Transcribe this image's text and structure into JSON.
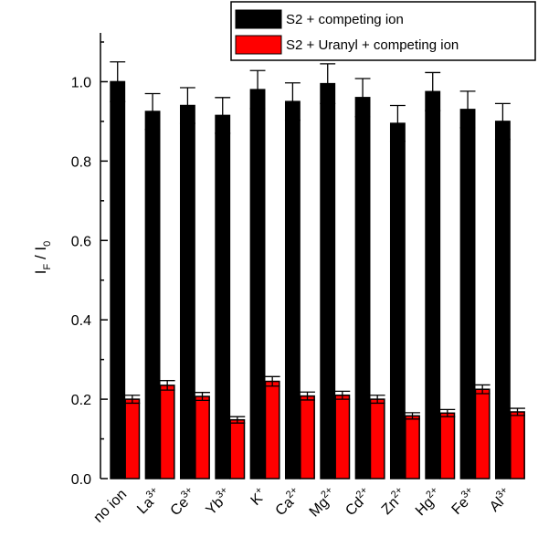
{
  "chart_data": {
    "type": "bar",
    "categories": [
      {
        "base": "no ion",
        "sup": ""
      },
      {
        "base": "La",
        "sup": "3+"
      },
      {
        "base": "Ce",
        "sup": "3+"
      },
      {
        "base": "Yb",
        "sup": "3+"
      },
      {
        "base": "K",
        "sup": "+"
      },
      {
        "base": "Ca",
        "sup": "2+"
      },
      {
        "base": "Mg",
        "sup": "2+"
      },
      {
        "base": "Cd",
        "sup": "2+"
      },
      {
        "base": "Zn",
        "sup": "2+"
      },
      {
        "base": "Hg",
        "sup": "2+"
      },
      {
        "base": "Fe",
        "sup": "3+"
      },
      {
        "base": "Al",
        "sup": "3+"
      }
    ],
    "series": [
      {
        "name": "S2 + competing ion",
        "color": "#000000",
        "values": [
          1.0,
          0.925,
          0.94,
          0.915,
          0.98,
          0.95,
          0.995,
          0.96,
          0.895,
          0.975,
          0.93,
          0.9
        ],
        "errors": [
          0.05,
          0.045,
          0.045,
          0.045,
          0.048,
          0.047,
          0.05,
          0.048,
          0.045,
          0.048,
          0.046,
          0.045
        ]
      },
      {
        "name": "S2 + Uranyl + competing ion",
        "color": "#ff0000",
        "values": [
          0.2,
          0.235,
          0.207,
          0.148,
          0.245,
          0.208,
          0.21,
          0.2,
          0.158,
          0.165,
          0.225,
          0.168
        ],
        "errors": [
          0.01,
          0.012,
          0.01,
          0.008,
          0.012,
          0.01,
          0.01,
          0.01,
          0.008,
          0.009,
          0.011,
          0.009
        ]
      }
    ],
    "ylabel": {
      "main": "I",
      "sub1": "F",
      "sep": " / I",
      "sub2": "0"
    },
    "xlabel": "",
    "ylim": [
      0,
      1.1
    ],
    "yticks": [
      0.0,
      0.2,
      0.4,
      0.6,
      0.8,
      1.0
    ],
    "ytick_labels": [
      "0.0",
      "0.2",
      "0.4",
      "0.6",
      "0.8",
      "1.0"
    ],
    "legend": "top-right",
    "grid": false
  }
}
